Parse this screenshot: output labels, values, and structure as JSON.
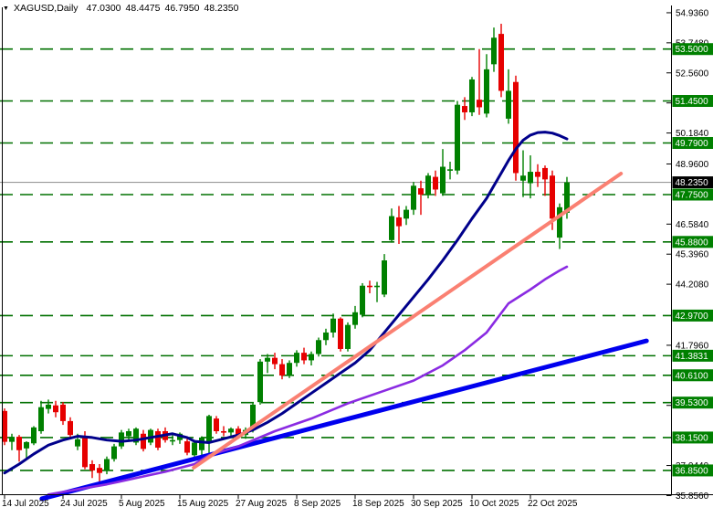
{
  "title": {
    "dropdown_marker": "▼",
    "symbol_timeframe": "XAGUSD,Daily",
    "open": "47.0300",
    "high": "48.4475",
    "low": "46.7950",
    "close": "48.2350"
  },
  "colors": {
    "background": "#ffffff",
    "bull": "#008000",
    "bear": "#e60000",
    "ma_fast_navy": "#00008B",
    "ma_slow_purple": "#8a2be2",
    "trendline_blue": "#0000ee",
    "trendline_salmon": "#fa8072",
    "level_dashed_green": "#007000",
    "current_price_line": "#999999",
    "label_green_bg": "#008000",
    "label_black_bg": "#000000",
    "label_text": "#ffffff",
    "axis_text": "#000000",
    "axis_line": "#000000"
  },
  "y_axis": {
    "ticks": [
      {
        "label": "54.9360",
        "price": 54.936
      },
      {
        "label": "53.7480",
        "price": 53.748
      },
      {
        "label": "52.5600",
        "price": 52.56
      },
      {
        "label": "51.3720",
        "price": 51.372
      },
      {
        "label": "50.1840",
        "price": 50.184
      },
      {
        "label": "48.9600",
        "price": 48.96
      },
      {
        "label": "46.5840",
        "price": 46.584
      },
      {
        "label": "45.3960",
        "price": 45.396
      },
      {
        "label": "44.2080",
        "price": 44.208
      },
      {
        "label": "41.7960",
        "price": 41.796
      },
      {
        "label": "39.4200",
        "price": 39.42
      },
      {
        "label": "37.0440",
        "price": 37.044
      },
      {
        "label": "35.8560",
        "price": 35.856
      }
    ],
    "price_labels": [
      {
        "label": "53.5000",
        "price": 53.5,
        "style": "green"
      },
      {
        "label": "51.4500",
        "price": 51.45,
        "style": "green"
      },
      {
        "label": "49.7900",
        "price": 49.79,
        "style": "green"
      },
      {
        "label": "48.2350",
        "price": 48.235,
        "style": "black"
      },
      {
        "label": "47.7500",
        "price": 47.75,
        "style": "green"
      },
      {
        "label": "45.8800",
        "price": 45.88,
        "style": "green"
      },
      {
        "label": "42.9700",
        "price": 42.97,
        "style": "green"
      },
      {
        "label": "41.3831",
        "price": 41.3831,
        "style": "green"
      },
      {
        "label": "40.6100",
        "price": 40.61,
        "style": "green"
      },
      {
        "label": "39.5300",
        "price": 39.53,
        "style": "green"
      },
      {
        "label": "38.1500",
        "price": 38.15,
        "style": "green"
      },
      {
        "label": "36.8500",
        "price": 36.85,
        "style": "green"
      }
    ]
  },
  "x_axis": {
    "labels": [
      {
        "label": "14 Jul 2025",
        "index": 0
      },
      {
        "label": "24 Jul 2025",
        "index": 8
      },
      {
        "label": "5 Aug 2025",
        "index": 16
      },
      {
        "label": "15 Aug 2025",
        "index": 24
      },
      {
        "label": "27 Aug 2025",
        "index": 32
      },
      {
        "label": "8 Sep 2025",
        "index": 40
      },
      {
        "label": "18 Sep 2025",
        "index": 48
      },
      {
        "label": "30 Sep 2025",
        "index": 56
      },
      {
        "label": "10 Oct 2025",
        "index": 64
      },
      {
        "label": "22 Oct 2025",
        "index": 72
      }
    ]
  },
  "chart_data": {
    "type": "candlestick",
    "symbol": "XAGUSD",
    "timeframe": "Daily",
    "title": "XAGUSD,Daily 47.0300 48.4475 46.7950 48.2350",
    "ylim": [
      35.7,
      54.95
    ],
    "grid": "horizontal-support-levels-only",
    "legend_position": "none",
    "current_price": 48.235,
    "support_resistance_levels": [
      53.5,
      51.45,
      49.79,
      47.75,
      45.88,
      42.97,
      41.3831,
      40.61,
      39.53,
      38.15,
      36.85
    ],
    "candles": [
      {
        "d": "2025-07-14",
        "o": 39.2,
        "h": 39.3,
        "l": 37.85,
        "c": 37.98
      },
      {
        "d": "2025-07-15",
        "o": 37.98,
        "h": 38.3,
        "l": 37.65,
        "c": 38.18
      },
      {
        "d": "2025-07-16",
        "o": 38.18,
        "h": 38.25,
        "l": 37.2,
        "c": 37.65
      },
      {
        "d": "2025-07-17",
        "o": 37.72,
        "h": 38.0,
        "l": 37.3,
        "c": 37.97
      },
      {
        "d": "2025-07-18",
        "o": 37.92,
        "h": 38.6,
        "l": 37.85,
        "c": 38.55
      },
      {
        "d": "2025-07-21",
        "o": 38.4,
        "h": 39.6,
        "l": 38.3,
        "c": 39.35
      },
      {
        "d": "2025-07-22",
        "o": 39.28,
        "h": 39.65,
        "l": 39.1,
        "c": 39.45
      },
      {
        "d": "2025-07-23",
        "o": 39.42,
        "h": 39.6,
        "l": 38.95,
        "c": 39.15
      },
      {
        "d": "2025-07-24",
        "o": 39.45,
        "h": 39.55,
        "l": 38.65,
        "c": 38.8
      },
      {
        "d": "2025-07-25",
        "o": 38.8,
        "h": 38.95,
        "l": 38.15,
        "c": 38.25
      },
      {
        "d": "2025-07-28",
        "o": 37.8,
        "h": 38.3,
        "l": 37.65,
        "c": 38.08
      },
      {
        "d": "2025-07-29",
        "o": 38.18,
        "h": 38.4,
        "l": 36.9,
        "c": 36.98
      },
      {
        "d": "2025-07-30",
        "o": 37.1,
        "h": 37.25,
        "l": 36.55,
        "c": 36.85
      },
      {
        "d": "2025-07-31",
        "o": 36.95,
        "h": 37.1,
        "l": 36.4,
        "c": 36.75
      },
      {
        "d": "2025-08-01",
        "o": 36.85,
        "h": 37.4,
        "l": 36.7,
        "c": 37.3
      },
      {
        "d": "2025-08-04",
        "o": 37.3,
        "h": 37.9,
        "l": 37.2,
        "c": 37.8
      },
      {
        "d": "2025-08-05",
        "o": 37.8,
        "h": 38.45,
        "l": 37.7,
        "c": 38.35
      },
      {
        "d": "2025-08-06",
        "o": 38.2,
        "h": 38.5,
        "l": 38.05,
        "c": 38.4
      },
      {
        "d": "2025-08-07",
        "o": 37.95,
        "h": 38.55,
        "l": 37.85,
        "c": 38.5
      },
      {
        "d": "2025-08-08",
        "o": 38.3,
        "h": 38.45,
        "l": 37.6,
        "c": 37.7
      },
      {
        "d": "2025-08-11",
        "o": 37.95,
        "h": 38.5,
        "l": 37.85,
        "c": 38.45
      },
      {
        "d": "2025-08-12",
        "o": 38.4,
        "h": 38.5,
        "l": 37.65,
        "c": 37.75
      },
      {
        "d": "2025-08-13",
        "o": 38.4,
        "h": 38.55,
        "l": 37.95,
        "c": 38.05
      },
      {
        "d": "2025-08-14",
        "o": 38.0,
        "h": 38.25,
        "l": 37.85,
        "c": 38.05
      },
      {
        "d": "2025-08-15",
        "o": 38.05,
        "h": 38.35,
        "l": 37.9,
        "c": 38.3
      },
      {
        "d": "2025-08-18",
        "o": 38.0,
        "h": 38.1,
        "l": 37.45,
        "c": 37.55
      },
      {
        "d": "2025-08-19",
        "o": 37.45,
        "h": 38.05,
        "l": 37.35,
        "c": 37.95
      },
      {
        "d": "2025-08-20",
        "o": 37.65,
        "h": 38.2,
        "l": 37.3,
        "c": 38.15
      },
      {
        "d": "2025-08-21",
        "o": 38.0,
        "h": 39.05,
        "l": 37.5,
        "c": 39.0
      },
      {
        "d": "2025-08-22",
        "o": 38.9,
        "h": 39.0,
        "l": 38.3,
        "c": 38.4
      },
      {
        "d": "2025-08-25",
        "o": 38.4,
        "h": 38.6,
        "l": 38.2,
        "c": 38.35
      },
      {
        "d": "2025-08-26",
        "o": 38.35,
        "h": 38.55,
        "l": 38.15,
        "c": 38.5
      },
      {
        "d": "2025-08-27",
        "o": 38.5,
        "h": 38.6,
        "l": 38.1,
        "c": 38.25
      },
      {
        "d": "2025-08-28",
        "o": 38.25,
        "h": 38.55,
        "l": 38.1,
        "c": 38.45
      },
      {
        "d": "2025-08-29",
        "o": 38.45,
        "h": 39.55,
        "l": 38.35,
        "c": 39.45
      },
      {
        "d": "2025-09-01",
        "o": 39.55,
        "h": 41.25,
        "l": 39.45,
        "c": 41.15
      },
      {
        "d": "2025-09-02",
        "o": 41.15,
        "h": 41.45,
        "l": 40.7,
        "c": 41.3
      },
      {
        "d": "2025-09-03",
        "o": 41.3,
        "h": 41.5,
        "l": 40.85,
        "c": 41.05
      },
      {
        "d": "2025-09-04",
        "o": 41.05,
        "h": 41.25,
        "l": 40.45,
        "c": 40.6
      },
      {
        "d": "2025-09-05",
        "o": 40.6,
        "h": 41.2,
        "l": 40.5,
        "c": 41.1
      },
      {
        "d": "2025-09-08",
        "o": 41.1,
        "h": 41.6,
        "l": 40.95,
        "c": 41.5
      },
      {
        "d": "2025-09-09",
        "o": 41.5,
        "h": 41.7,
        "l": 41.05,
        "c": 41.2
      },
      {
        "d": "2025-09-10",
        "o": 41.2,
        "h": 41.55,
        "l": 41.0,
        "c": 41.45
      },
      {
        "d": "2025-09-11",
        "o": 41.45,
        "h": 42.1,
        "l": 41.35,
        "c": 42.0
      },
      {
        "d": "2025-09-12",
        "o": 42.0,
        "h": 42.45,
        "l": 41.8,
        "c": 42.3
      },
      {
        "d": "2025-09-15",
        "o": 42.3,
        "h": 43.05,
        "l": 42.1,
        "c": 42.85
      },
      {
        "d": "2025-09-16",
        "o": 42.85,
        "h": 42.9,
        "l": 41.55,
        "c": 41.65
      },
      {
        "d": "2025-09-17",
        "o": 41.65,
        "h": 42.7,
        "l": 41.55,
        "c": 42.6
      },
      {
        "d": "2025-09-18",
        "o": 42.6,
        "h": 43.35,
        "l": 42.45,
        "c": 43.1
      },
      {
        "d": "2025-09-19",
        "o": 43.0,
        "h": 44.25,
        "l": 42.9,
        "c": 44.15
      },
      {
        "d": "2025-09-22",
        "o": 44.15,
        "h": 44.35,
        "l": 43.85,
        "c": 44.1
      },
      {
        "d": "2025-09-23",
        "o": 44.1,
        "h": 44.3,
        "l": 43.5,
        "c": 44.15
      },
      {
        "d": "2025-09-24",
        "o": 43.8,
        "h": 45.4,
        "l": 43.7,
        "c": 45.15
      },
      {
        "d": "2025-09-25",
        "o": 45.95,
        "h": 47.2,
        "l": 45.85,
        "c": 46.9
      },
      {
        "d": "2025-09-26",
        "o": 46.85,
        "h": 47.3,
        "l": 45.8,
        "c": 46.5
      },
      {
        "d": "2025-09-29",
        "o": 46.8,
        "h": 47.3,
        "l": 46.55,
        "c": 47.15
      },
      {
        "d": "2025-09-30",
        "o": 47.15,
        "h": 48.25,
        "l": 46.95,
        "c": 48.1
      },
      {
        "d": "2025-10-01",
        "o": 48.0,
        "h": 48.3,
        "l": 46.95,
        "c": 47.75
      },
      {
        "d": "2025-10-02",
        "o": 47.75,
        "h": 48.6,
        "l": 47.6,
        "c": 48.5
      },
      {
        "d": "2025-10-03",
        "o": 48.45,
        "h": 48.7,
        "l": 47.7,
        "c": 47.95
      },
      {
        "d": "2025-10-06",
        "o": 47.8,
        "h": 49.55,
        "l": 47.7,
        "c": 48.85
      },
      {
        "d": "2025-10-07",
        "o": 48.7,
        "h": 49.05,
        "l": 48.35,
        "c": 48.75
      },
      {
        "d": "2025-10-08",
        "o": 48.7,
        "h": 51.45,
        "l": 48.55,
        "c": 51.3
      },
      {
        "d": "2025-10-09",
        "o": 51.25,
        "h": 51.6,
        "l": 50.7,
        "c": 51.0
      },
      {
        "d": "2025-10-10",
        "o": 51.0,
        "h": 52.4,
        "l": 50.85,
        "c": 52.3
      },
      {
        "d": "2025-10-13",
        "o": 51.5,
        "h": 53.5,
        "l": 50.9,
        "c": 51.2
      },
      {
        "d": "2025-10-14",
        "o": 50.95,
        "h": 53.3,
        "l": 50.8,
        "c": 52.7
      },
      {
        "d": "2025-10-15",
        "o": 52.9,
        "h": 54.35,
        "l": 52.6,
        "c": 53.95
      },
      {
        "d": "2025-10-16",
        "o": 54.1,
        "h": 54.5,
        "l": 51.6,
        "c": 51.85
      },
      {
        "d": "2025-10-17",
        "o": 50.75,
        "h": 52.7,
        "l": 50.55,
        "c": 51.85
      },
      {
        "d": "2025-10-20",
        "o": 52.2,
        "h": 52.45,
        "l": 48.3,
        "c": 48.6
      },
      {
        "d": "2025-10-21",
        "o": 48.3,
        "h": 49.5,
        "l": 47.65,
        "c": 48.5
      },
      {
        "d": "2025-10-22",
        "o": 48.2,
        "h": 49.3,
        "l": 47.6,
        "c": 48.65
      },
      {
        "d": "2025-10-23",
        "o": 48.65,
        "h": 48.95,
        "l": 48.05,
        "c": 48.45
      },
      {
        "d": "2025-10-24",
        "o": 48.8,
        "h": 48.9,
        "l": 47.7,
        "c": 48.35
      },
      {
        "d": "2025-10-27",
        "o": 48.5,
        "h": 48.7,
        "l": 46.35,
        "c": 46.8
      },
      {
        "d": "2025-10-28",
        "o": 46.05,
        "h": 47.4,
        "l": 45.6,
        "c": 47.25
      },
      {
        "d": "2025-10-29",
        "o": 47.03,
        "h": 48.4475,
        "l": 46.795,
        "c": 48.235
      }
    ],
    "ma_fast_navy_points": [
      [
        0,
        36.75
      ],
      [
        2,
        37.1
      ],
      [
        4,
        37.5
      ],
      [
        6,
        37.85
      ],
      [
        8,
        38.05
      ],
      [
        10,
        38.2
      ],
      [
        12,
        38.15
      ],
      [
        14,
        38.05
      ],
      [
        16,
        38.0
      ],
      [
        18,
        38.05
      ],
      [
        20,
        38.15
      ],
      [
        22,
        38.25
      ],
      [
        23,
        38.3
      ],
      [
        25,
        38.15
      ],
      [
        26,
        38.0
      ],
      [
        28,
        37.95
      ],
      [
        30,
        38.1
      ],
      [
        32,
        38.25
      ],
      [
        34,
        38.45
      ],
      [
        36,
        38.75
      ],
      [
        38,
        39.1
      ],
      [
        40,
        39.5
      ],
      [
        42,
        39.9
      ],
      [
        44,
        40.3
      ],
      [
        46,
        40.7
      ],
      [
        48,
        41.1
      ],
      [
        50,
        41.6
      ],
      [
        52,
        42.3
      ],
      [
        54,
        43.0
      ],
      [
        56,
        43.7
      ],
      [
        58,
        44.4
      ],
      [
        60,
        45.15
      ],
      [
        62,
        45.95
      ],
      [
        64,
        46.8
      ],
      [
        66,
        47.6
      ],
      [
        67,
        48.1
      ],
      [
        68,
        48.6
      ],
      [
        69,
        49.1
      ],
      [
        70,
        49.55
      ],
      [
        71,
        49.9
      ],
      [
        72,
        50.1
      ],
      [
        73,
        50.2
      ],
      [
        74,
        50.22
      ],
      [
        75,
        50.18
      ],
      [
        76,
        50.08
      ],
      [
        77,
        49.95
      ]
    ],
    "ma_slow_purple_points": [
      [
        6,
        35.9
      ],
      [
        10,
        36.1
      ],
      [
        14,
        36.3
      ],
      [
        18,
        36.55
      ],
      [
        22,
        36.8
      ],
      [
        26,
        37.1
      ],
      [
        28,
        37.45
      ],
      [
        32,
        37.8
      ],
      [
        37,
        38.4
      ],
      [
        42,
        38.9
      ],
      [
        47,
        39.5
      ],
      [
        52,
        40.0
      ],
      [
        56,
        40.4
      ],
      [
        60,
        41.0
      ],
      [
        63,
        41.6
      ],
      [
        66,
        42.3
      ],
      [
        69,
        43.45
      ],
      [
        72,
        44.0
      ],
      [
        74,
        44.4
      ],
      [
        76,
        44.75
      ],
      [
        77,
        44.9
      ]
    ],
    "trendlines": [
      {
        "name": "blue-long-term-trendline",
        "i1": 5.1,
        "p1": 35.73,
        "i2": 87.9,
        "p2": 41.97
      },
      {
        "name": "salmon-steep-trendline",
        "i1": 25.9,
        "p1": 36.96,
        "i2": 84.4,
        "p2": 48.58
      }
    ]
  }
}
